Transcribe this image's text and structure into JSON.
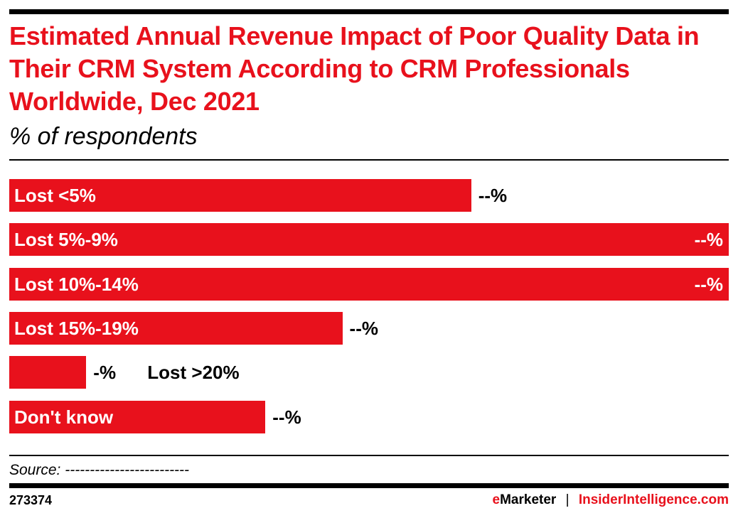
{
  "chart_data": {
    "type": "bar",
    "orientation": "horizontal",
    "title": "Estimated Annual Revenue Impact of Poor Quality Data in Their CRM System According to CRM Professionals Worldwide, Dec 2021",
    "subtitle": "% of respondents",
    "categories": [
      "Lost <5%",
      "Lost 5%-9%",
      "Lost 10%-14%",
      "Lost 15%-19%",
      "Lost >20%",
      "Don't know"
    ],
    "relative_values": [
      64.2,
      100,
      100,
      46.3,
      10.7,
      35.6
    ],
    "data_labels": [
      "--%",
      "--%",
      "--%",
      "--%",
      "-%",
      "--%"
    ],
    "bar_color": "#e8111c",
    "grid": false,
    "legend": "none"
  },
  "footer": {
    "source": "Source: -------------------------",
    "chart_id": "273374",
    "brand_e": "e",
    "brand_rest": "Marketer",
    "separator": "|",
    "brand_site": "InsiderIntelligence.com"
  }
}
